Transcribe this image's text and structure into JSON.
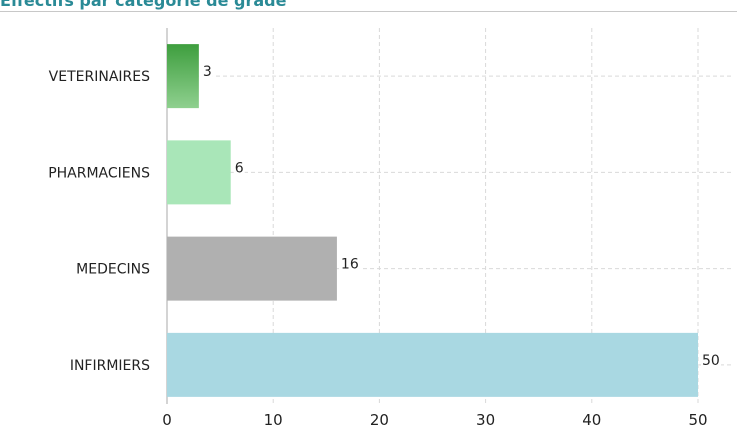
{
  "header": {
    "title": "Effectifs par catégorie de grade"
  },
  "colors": {
    "title": "#2a8a96",
    "veterinaires": "#5fb85f",
    "pharmaciens": "#a9e6b8",
    "medecins": "#b0b0b0",
    "infirmiers": "#a9d8e2",
    "grid": "#d9d9d9",
    "axis": "#aaaaaa"
  },
  "chart_data": {
    "type": "bar",
    "orientation": "horizontal",
    "title": "Effectifs par catégorie de grade",
    "categories": [
      "VETERINAIRES",
      "PHARMACIENS",
      "MEDECINS",
      "INFIRMIERS"
    ],
    "values": [
      3,
      6,
      16,
      50
    ],
    "value_labels": [
      "3",
      "6",
      "16",
      "50"
    ],
    "xlim": [
      0,
      53
    ],
    "xticks": [
      0,
      10,
      20,
      30,
      40,
      50
    ],
    "xtick_labels": [
      "0",
      "10",
      "20",
      "30",
      "40",
      "50"
    ],
    "xlabel": "",
    "ylabel": "",
    "grid": true,
    "legend": "none"
  }
}
